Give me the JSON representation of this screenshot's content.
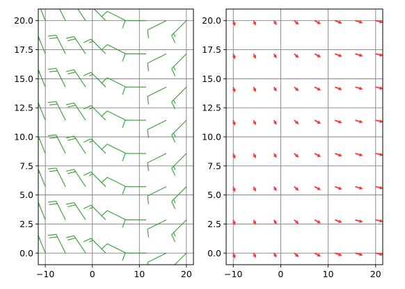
{
  "chart_data": [
    {
      "type": "barbs",
      "title": "",
      "xlabel": "",
      "ylabel": "",
      "xlim": [
        -11.5,
        21.5
      ],
      "ylim": [
        -1.0,
        21.0
      ],
      "xticks": [
        -10,
        0,
        10,
        20
      ],
      "xtick_labels": [
        "−10",
        "0",
        "10",
        "20"
      ],
      "yticks": [
        0.0,
        2.5,
        5.0,
        7.5,
        10.0,
        12.5,
        15.0,
        17.5,
        20.0
      ],
      "ytick_labels": [
        "0.0",
        "2.5",
        "5.0",
        "7.5",
        "10.0",
        "12.5",
        "15.0",
        "17.5",
        "20.0"
      ],
      "grid": true,
      "x": [
        -10.0,
        -5.714,
        -1.429,
        2.857,
        7.143,
        11.429,
        15.714,
        20.0
      ],
      "y": [
        0.0,
        2.857,
        5.714,
        8.571,
        11.429,
        14.286,
        17.143,
        20.0
      ],
      "u": [
        [
          10,
          10,
          10,
          10,
          10,
          10,
          10,
          10
        ],
        [
          10,
          10,
          10,
          10,
          10,
          10,
          10,
          10
        ],
        [
          10,
          10,
          10,
          10,
          10,
          10,
          10,
          10
        ],
        [
          10,
          10,
          10,
          10,
          10,
          10,
          10,
          10
        ],
        [
          10,
          10,
          10,
          10,
          10,
          10,
          10,
          10
        ],
        [
          10,
          10,
          10,
          10,
          10,
          10,
          10,
          10
        ],
        [
          10,
          10,
          10,
          10,
          10,
          10,
          10,
          10
        ],
        [
          10,
          10,
          10,
          10,
          10,
          10,
          10,
          10
        ]
      ],
      "v": [
        [
          -25,
          -20,
          -15,
          -10,
          -5,
          0,
          5,
          10
        ],
        [
          -25,
          -20,
          -15,
          -10,
          -5,
          0,
          5,
          10
        ],
        [
          -25,
          -20,
          -15,
          -10,
          -5,
          0,
          5,
          10
        ],
        [
          -25,
          -20,
          -15,
          -10,
          -5,
          0,
          5,
          10
        ],
        [
          -25,
          -20,
          -15,
          -10,
          -5,
          0,
          5,
          10
        ],
        [
          -25,
          -20,
          -15,
          -10,
          -5,
          0,
          5,
          10
        ],
        [
          -25,
          -20,
          -15,
          -10,
          -5,
          0,
          5,
          10
        ],
        [
          -25,
          -20,
          -15,
          -10,
          -5,
          0,
          5,
          10
        ]
      ],
      "color": "#2ca02c"
    },
    {
      "type": "quiver",
      "title": "",
      "xlabel": "",
      "ylabel": "",
      "xlim": [
        -11.5,
        21.5
      ],
      "ylim": [
        -1.0,
        21.0
      ],
      "xticks": [
        -10,
        0,
        10,
        20
      ],
      "xtick_labels": [
        "−10",
        "0",
        "10",
        "20"
      ],
      "yticks": [
        0.0,
        2.5,
        5.0,
        7.5,
        10.0,
        12.5,
        15.0,
        17.5,
        20.0
      ],
      "ytick_labels": [
        "0.0",
        "2.5",
        "5.0",
        "7.5",
        "10.0",
        "12.5",
        "15.0",
        "17.5",
        "20.0"
      ],
      "grid": true,
      "x": [
        -10.0,
        -5.714,
        -1.429,
        2.857,
        7.143,
        11.429,
        15.714,
        20.0
      ],
      "y": [
        0.0,
        2.857,
        5.714,
        8.571,
        11.429,
        14.286,
        17.143,
        20.0
      ],
      "u": [
        0.2,
        0.25,
        0.3,
        0.5,
        0.7,
        0.8,
        0.85,
        0.85
      ],
      "v": [
        -0.6,
        -0.55,
        -0.5,
        -0.45,
        -0.38,
        -0.3,
        -0.25,
        -0.2
      ],
      "color": "#ff3333"
    }
  ]
}
